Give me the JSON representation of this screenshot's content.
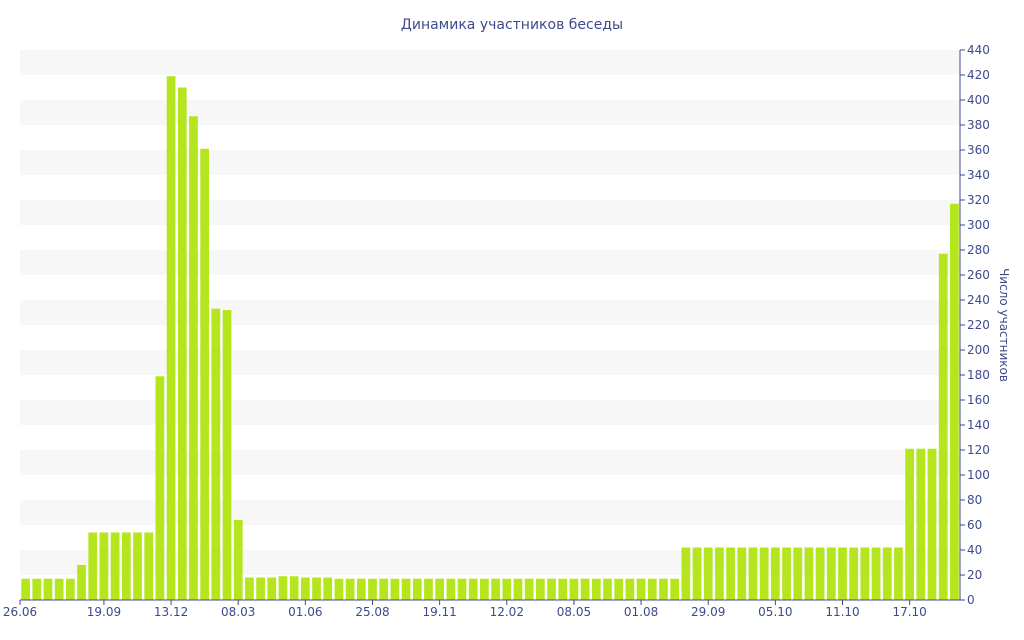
{
  "chart_data": {
    "type": "bar",
    "title": "Динамика участников беседы",
    "ylabel": "Число участников",
    "xlabel": "",
    "ylim": [
      0,
      440
    ],
    "y_ticks": [
      0,
      20,
      40,
      60,
      80,
      100,
      120,
      140,
      160,
      180,
      200,
      220,
      240,
      260,
      280,
      300,
      320,
      340,
      360,
      380,
      400,
      420,
      440
    ],
    "x_tick_labels": [
      "26.06",
      "19.09",
      "13.12",
      "08.03",
      "01.06",
      "25.08",
      "19.11",
      "12.02",
      "08.05",
      "01.08",
      "29.09",
      "05.10",
      "11.10",
      "17.10"
    ],
    "x_tick_positions": [
      0,
      7.5,
      13.5,
      19.5,
      25.5,
      31.5,
      37.5,
      43.5,
      49.5,
      55.5,
      61.5,
      67.5,
      73.5,
      79.5
    ],
    "values": [
      17,
      17,
      17,
      17,
      17,
      28,
      54,
      54,
      54,
      54,
      54,
      54,
      179,
      419,
      410,
      387,
      361,
      233,
      232,
      64,
      18,
      18,
      18,
      19,
      19,
      18,
      18,
      18,
      17,
      17,
      17,
      17,
      17,
      17,
      17,
      17,
      17,
      17,
      17,
      17,
      17,
      17,
      17,
      17,
      17,
      17,
      17,
      17,
      17,
      17,
      17,
      17,
      17,
      17,
      17,
      17,
      17,
      17,
      17,
      42,
      42,
      42,
      42,
      42,
      42,
      42,
      42,
      42,
      42,
      42,
      42,
      42,
      42,
      42,
      42,
      42,
      42,
      42,
      42,
      121,
      121,
      121,
      277,
      317
    ],
    "grid": "horizontal bands",
    "bar_color": "#b5e61d",
    "band_color": "#f7f7f7",
    "text_color": "#3e4a8c",
    "axis_color": "#3e4a8c"
  }
}
